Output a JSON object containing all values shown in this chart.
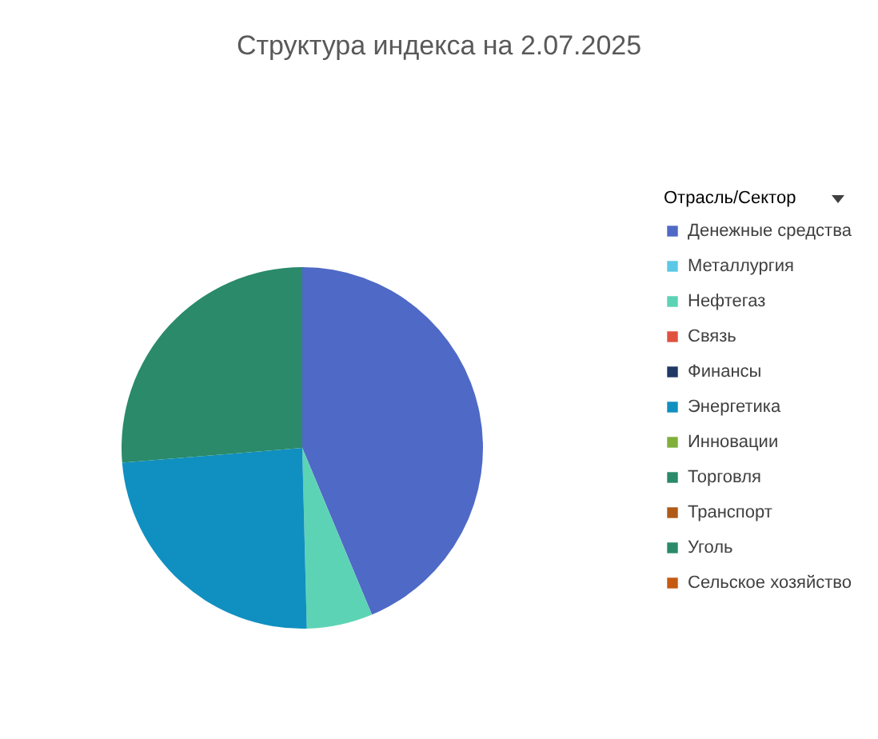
{
  "chart_data": {
    "type": "pie",
    "title": "Структура индекса на 2.07.2025",
    "legend_title": "Отрасль/Сектор",
    "legend": "right",
    "categories": [
      "Денежные средства",
      "Металлургия",
      "Нефтегаз",
      "Связь",
      "Финансы",
      "Энергетика",
      "Инновации",
      "Торговля",
      "Транспорт",
      "Уголь",
      "Сельское хозяйство"
    ],
    "values": [
      43.7,
      0,
      5.9,
      0,
      0,
      24.1,
      0,
      0,
      0,
      26.3,
      0
    ],
    "colors": [
      "#4f69c6",
      "#5bc8e6",
      "#5dd3b5",
      "#e0523f",
      "#1f3864",
      "#1090c0",
      "#7fb03a",
      "#2a8a6a",
      "#b05a17",
      "#2a8a6a",
      "#c55a11"
    ]
  }
}
